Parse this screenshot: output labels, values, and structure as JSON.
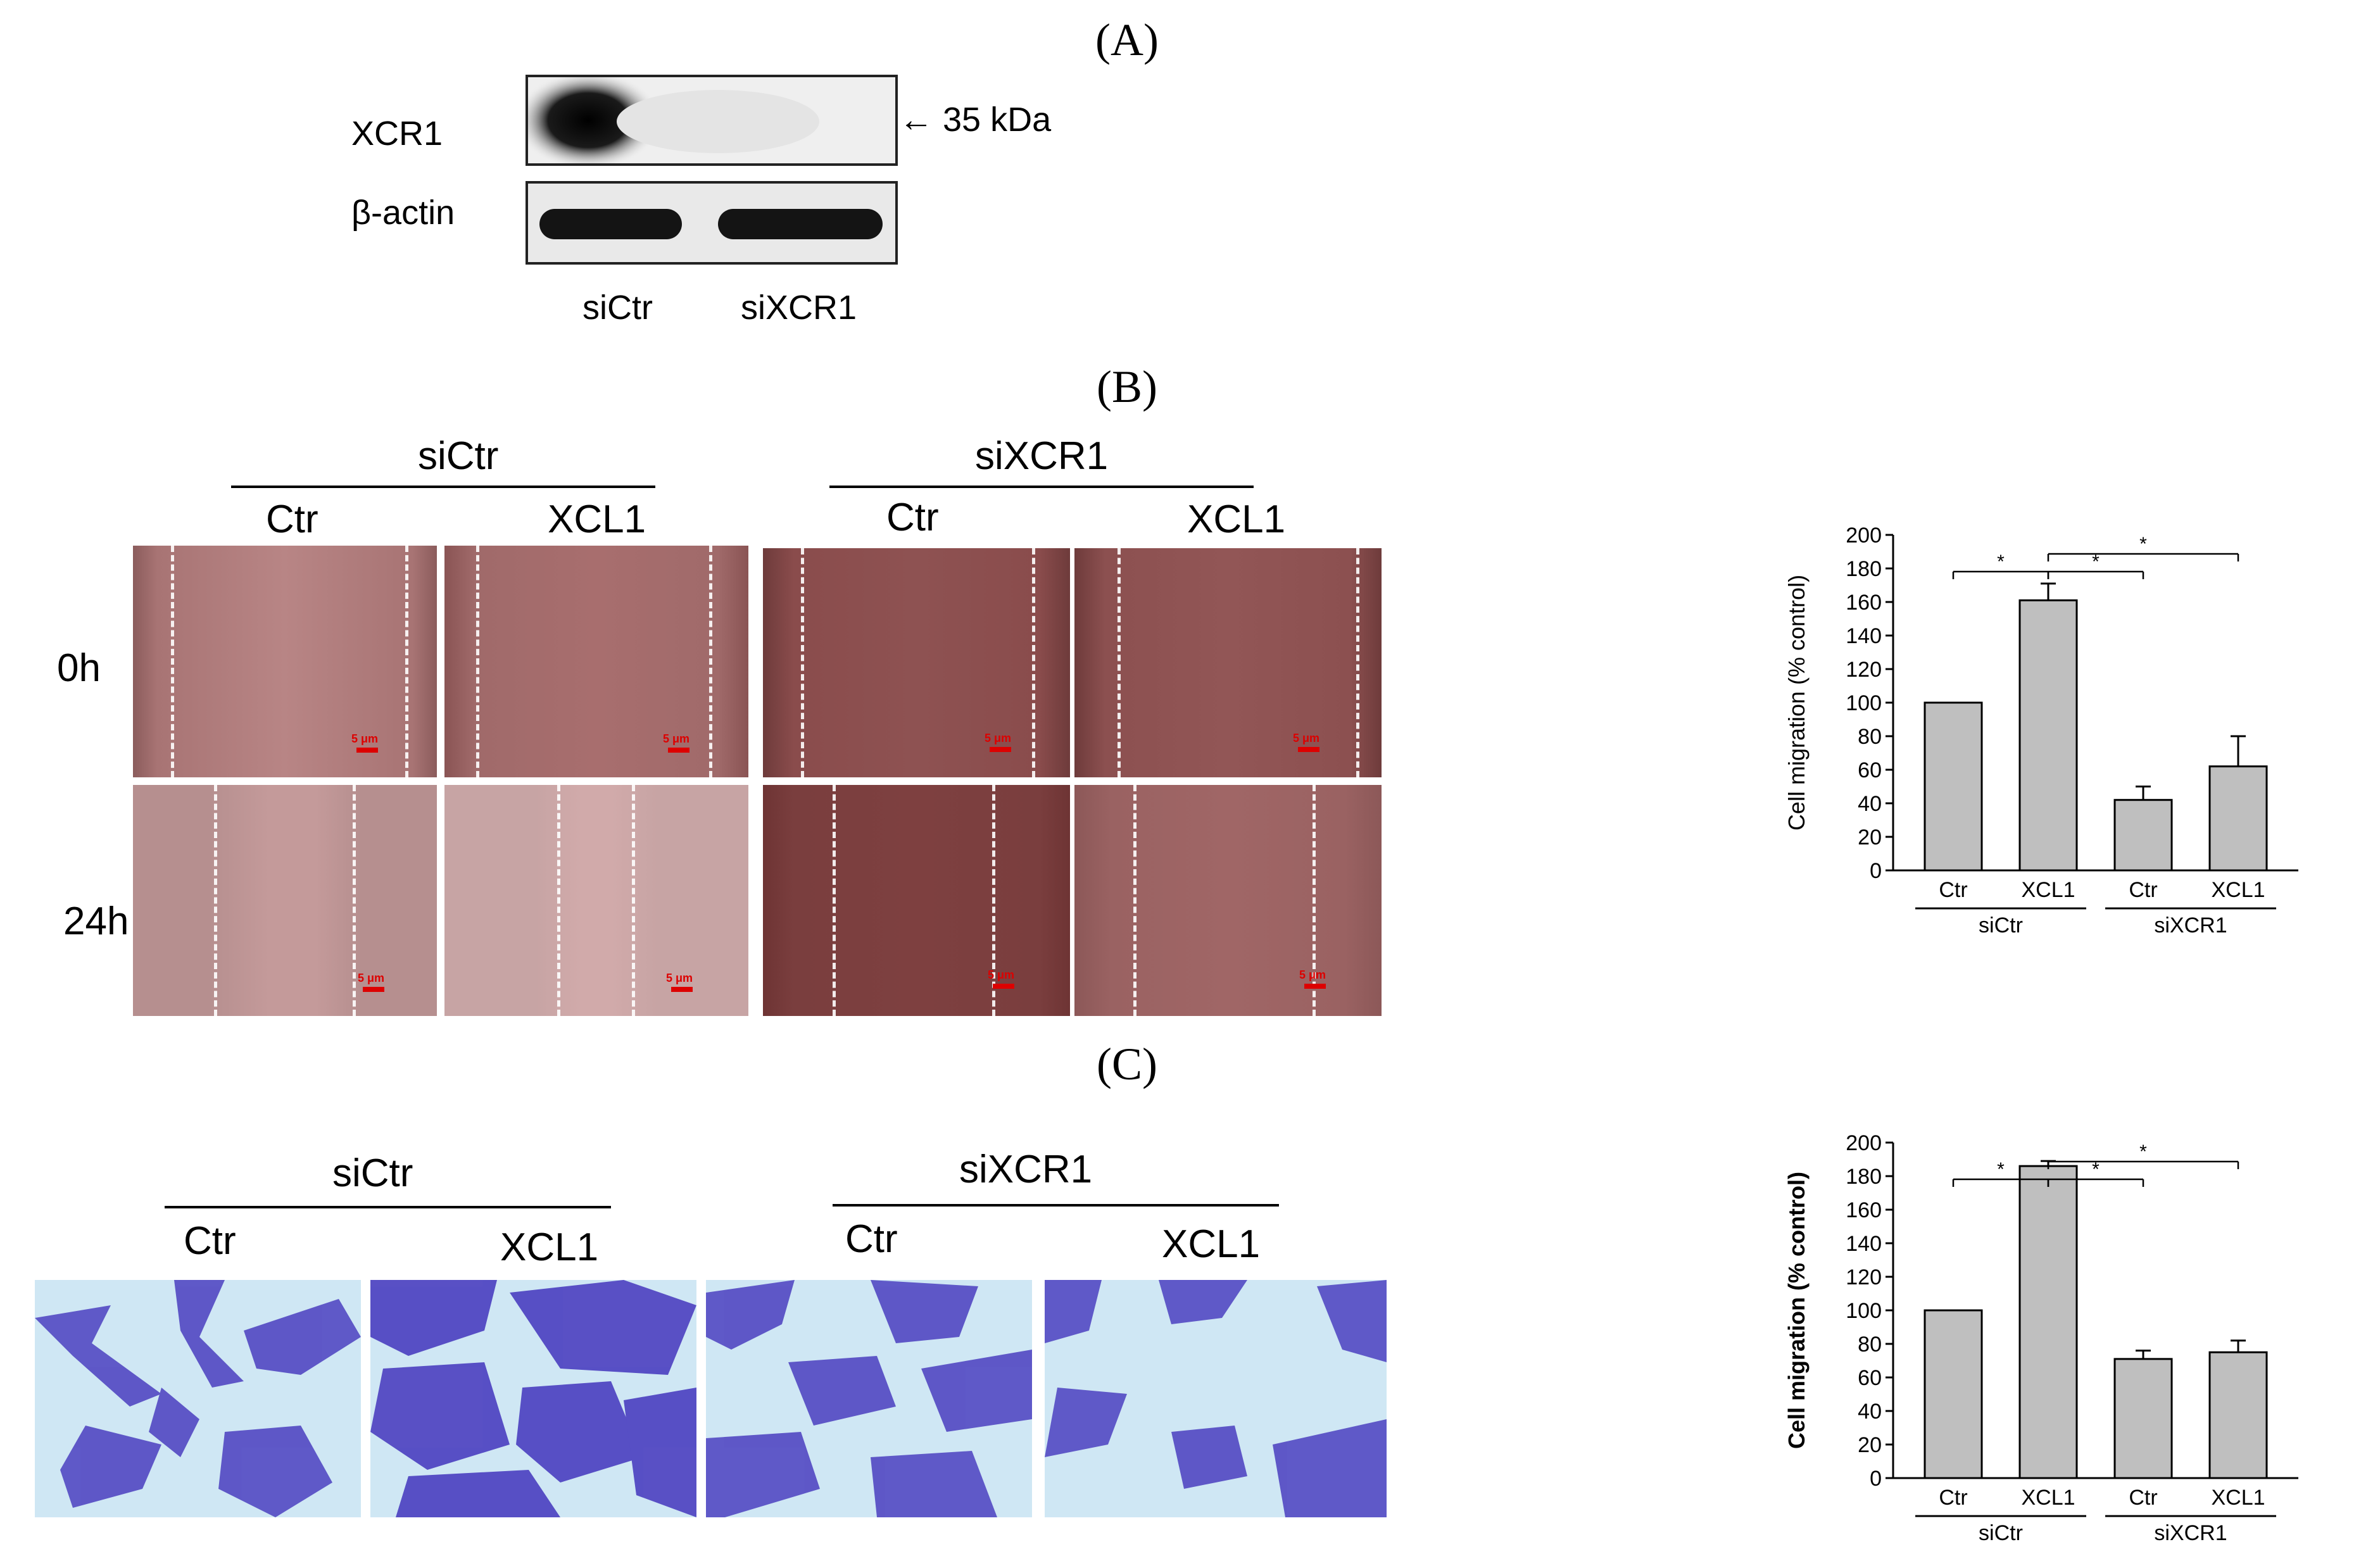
{
  "panels": {
    "a": "(A)",
    "b": "(B)",
    "c": "(C)"
  },
  "blot": {
    "rows": [
      "XCR1",
      "β-actin"
    ],
    "lanes": [
      "siCtr",
      "siXCR1"
    ],
    "marker": "← 35 kDa"
  },
  "scratch": {
    "groups": [
      "siCtr",
      "siXCR1"
    ],
    "conditions": [
      "Ctr",
      "XCL1",
      "Ctr",
      "XCL1"
    ],
    "timepoints": [
      "0h",
      "24h"
    ],
    "scale_label": "5 μm"
  },
  "transwell": {
    "groups": [
      "siCtr",
      "siXCR1"
    ],
    "conditions": [
      "Ctr",
      "XCL1",
      "Ctr",
      "XCL1"
    ]
  },
  "colors": {
    "bar": "#bfbfbf",
    "scratch_bg": "#b07a7a",
    "transwell_bg": "#cfe7f4",
    "cells": "#4b3fc0"
  },
  "chart_data": [
    {
      "type": "bar",
      "categories": [
        "Ctr",
        "XCL1",
        "Ctr",
        "XCL1"
      ],
      "groups": [
        "siCtr",
        "siXCR1"
      ],
      "values": [
        100,
        161,
        42,
        62
      ],
      "errors": [
        0,
        10,
        8,
        18
      ],
      "ylabel": "Cell migration (% control)",
      "ylim": [
        0,
        200
      ],
      "yticks": [
        0,
        20,
        40,
        60,
        80,
        100,
        120,
        140,
        160,
        180,
        200
      ],
      "significance": [
        "*",
        "*",
        "*"
      ],
      "ylabel_bold": false
    },
    {
      "type": "bar",
      "categories": [
        "Ctr",
        "XCL1",
        "Ctr",
        "XCL1"
      ],
      "groups": [
        "siCtr",
        "siXCR1"
      ],
      "values": [
        100,
        186,
        71,
        75
      ],
      "errors": [
        0,
        3,
        5,
        7
      ],
      "ylabel": "Cell migration (% control)",
      "ylim": [
        0,
        200
      ],
      "yticks": [
        0,
        20,
        40,
        60,
        80,
        100,
        120,
        140,
        160,
        180,
        200
      ],
      "significance": [
        "*",
        "*",
        "*"
      ],
      "ylabel_bold": true
    }
  ]
}
